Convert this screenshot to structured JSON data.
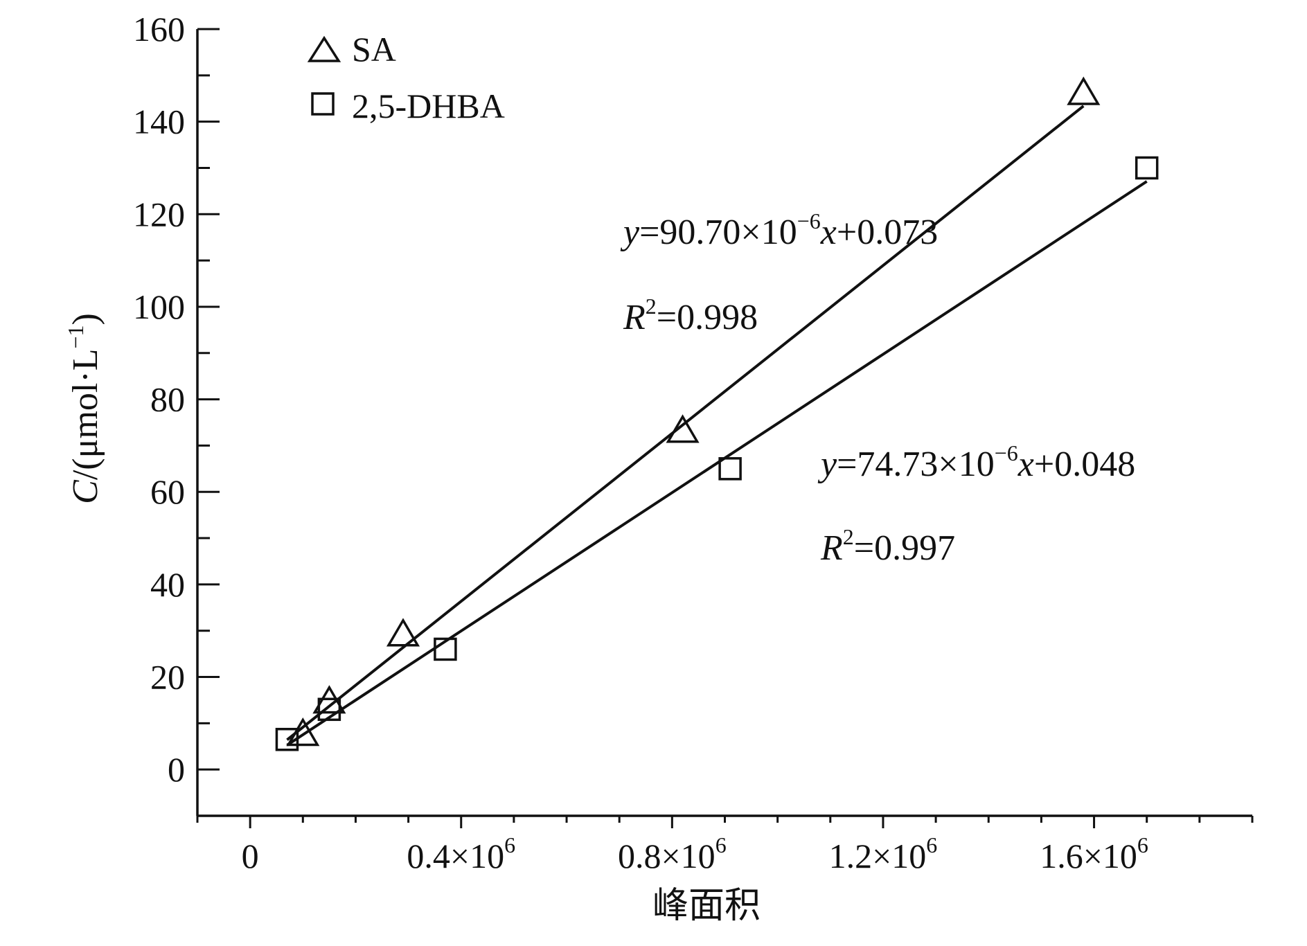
{
  "chart_data": {
    "type": "scatter",
    "xlabel": "峰面积",
    "ylabel": "C/(μmol·L⁻¹)",
    "ylabel_parts": {
      "italic": "C",
      "rest": "/(μmol·L",
      "sup": "−1",
      "close": ")"
    },
    "xlim": [
      -100000,
      1900000
    ],
    "ylim": [
      -10,
      160
    ],
    "x_ticks": [
      0,
      400000,
      800000,
      1200000,
      1600000
    ],
    "x_tick_labels": [
      {
        "text": "0",
        "sup": ""
      },
      {
        "text": "0.4×10",
        "sup": "6"
      },
      {
        "text": "0.8×10",
        "sup": "6"
      },
      {
        "text": "1.2×10",
        "sup": "6"
      },
      {
        "text": "1.6×10",
        "sup": "6"
      }
    ],
    "x_minor_step": 100000,
    "y_ticks": [
      0,
      20,
      40,
      60,
      80,
      100,
      120,
      140,
      160
    ],
    "y_tick_labels": [
      "0",
      "20",
      "40",
      "60",
      "80",
      "100",
      "120",
      "140",
      "160"
    ],
    "y_minor_step": 10,
    "grid": false,
    "legend_position": "top-left",
    "series": [
      {
        "name": "SA",
        "marker": "triangle",
        "points": [
          {
            "x": 100000,
            "y": 7.5
          },
          {
            "x": 150000,
            "y": 14.5
          },
          {
            "x": 290000,
            "y": 29
          },
          {
            "x": 820000,
            "y": 73
          },
          {
            "x": 1580000,
            "y": 146
          }
        ],
        "fit": {
          "x0": 70000,
          "x1": 1580000,
          "slope": 9.07e-05,
          "intercept": 0.073
        },
        "equation": {
          "prefix_italic": "y",
          "body": "=90.70×10",
          "sup": "−6",
          "var_italic": "x",
          "tail": "+0.073"
        },
        "r2": {
          "italic": "R",
          "sup": "2",
          "tail": "=0.998"
        }
      },
      {
        "name": "2,5-DHBA",
        "marker": "square",
        "points": [
          {
            "x": 70000,
            "y": 6.5
          },
          {
            "x": 150000,
            "y": 13
          },
          {
            "x": 370000,
            "y": 26
          },
          {
            "x": 910000,
            "y": 65
          },
          {
            "x": 1700000,
            "y": 130
          }
        ],
        "fit": {
          "x0": 70000,
          "x1": 1700000,
          "slope": 7.473e-05,
          "intercept": 0.048
        },
        "equation": {
          "prefix_italic": "y",
          "body": "=74.73×10",
          "sup": "−6",
          "var_italic": "x",
          "tail": "+0.048"
        },
        "r2": {
          "italic": "R",
          "sup": "2",
          "tail": "=0.997"
        }
      }
    ]
  }
}
